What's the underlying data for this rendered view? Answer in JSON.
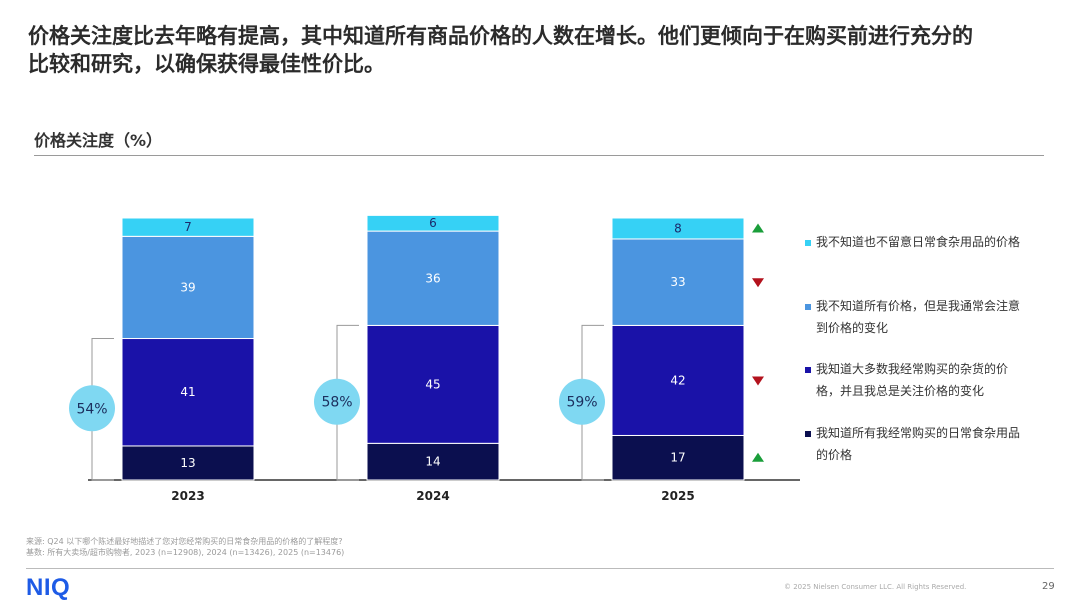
{
  "headline": {
    "line1": "价格关注度比去年略有提高，其中知道所有商品价格的人数在增长。他们更倾向于在购买前进行充分的",
    "line2": "比较和研究，以确保获得最佳性价比。"
  },
  "section_title": "价格关注度（%）",
  "chart_data": {
    "type": "bar",
    "stacked": true,
    "title": "价格关注度（%）",
    "categories": [
      "2023",
      "2024",
      "2025"
    ],
    "series": [
      {
        "name": "我知道所有我经常购买的日常食杂用品的价格",
        "color": "#0b0f4f",
        "values": [
          13,
          14,
          17
        ]
      },
      {
        "name": "我知道大多数我经常购买的杂货的价格，并且我总是关注价格的变化",
        "color": "#1a12a8",
        "values": [
          41,
          45,
          42
        ]
      },
      {
        "name": "我不知道所有价格，但是我通常会注意到价格的变化",
        "color": "#4b95e0",
        "values": [
          39,
          36,
          33
        ]
      },
      {
        "name": "我不知道也不留意日常食杂用品的价格",
        "color": "#36d1f5",
        "values": [
          7,
          6,
          8
        ]
      }
    ],
    "bracket_totals": [
      "54%",
      "58%",
      "59%"
    ],
    "trend_2025": [
      "up",
      "down",
      "down",
      "up"
    ],
    "ylim": [
      0,
      100
    ]
  },
  "legend": [
    {
      "lines": [
        "我不知道也不留意日常食杂用品的价格"
      ],
      "color": "#36d1f5"
    },
    {
      "lines": [
        "我不知道所有价格，但是我通常会注意",
        "到价格的变化"
      ],
      "color": "#4b95e0"
    },
    {
      "lines": [
        "我知道大多数我经常购买的杂货的价",
        "格，并且我总是关注价格的变化"
      ],
      "color": "#1a12a8"
    },
    {
      "lines": [
        "我知道所有我经常购买的日常食杂用品",
        "的价格"
      ],
      "color": "#0b0f4f"
    }
  ],
  "trend_colors": {
    "up": "#1a9e3a",
    "down": "#b3121d"
  },
  "bracket_color": "#7fd8f2",
  "footnote": {
    "line1": "来源: Q24 以下哪个陈述最好地描述了您对您经常购买的日常食杂用品的价格的了解程度?",
    "line2": "基数: 所有大卖场/超市购物者, 2023 (n=12908), 2024 (n=13426), 2025 (n=13476)"
  },
  "footer": {
    "logo": "NIQ",
    "copyright": "© 2025 Nielsen Consumer LLC. All Rights Reserved.",
    "page_number": "29"
  }
}
